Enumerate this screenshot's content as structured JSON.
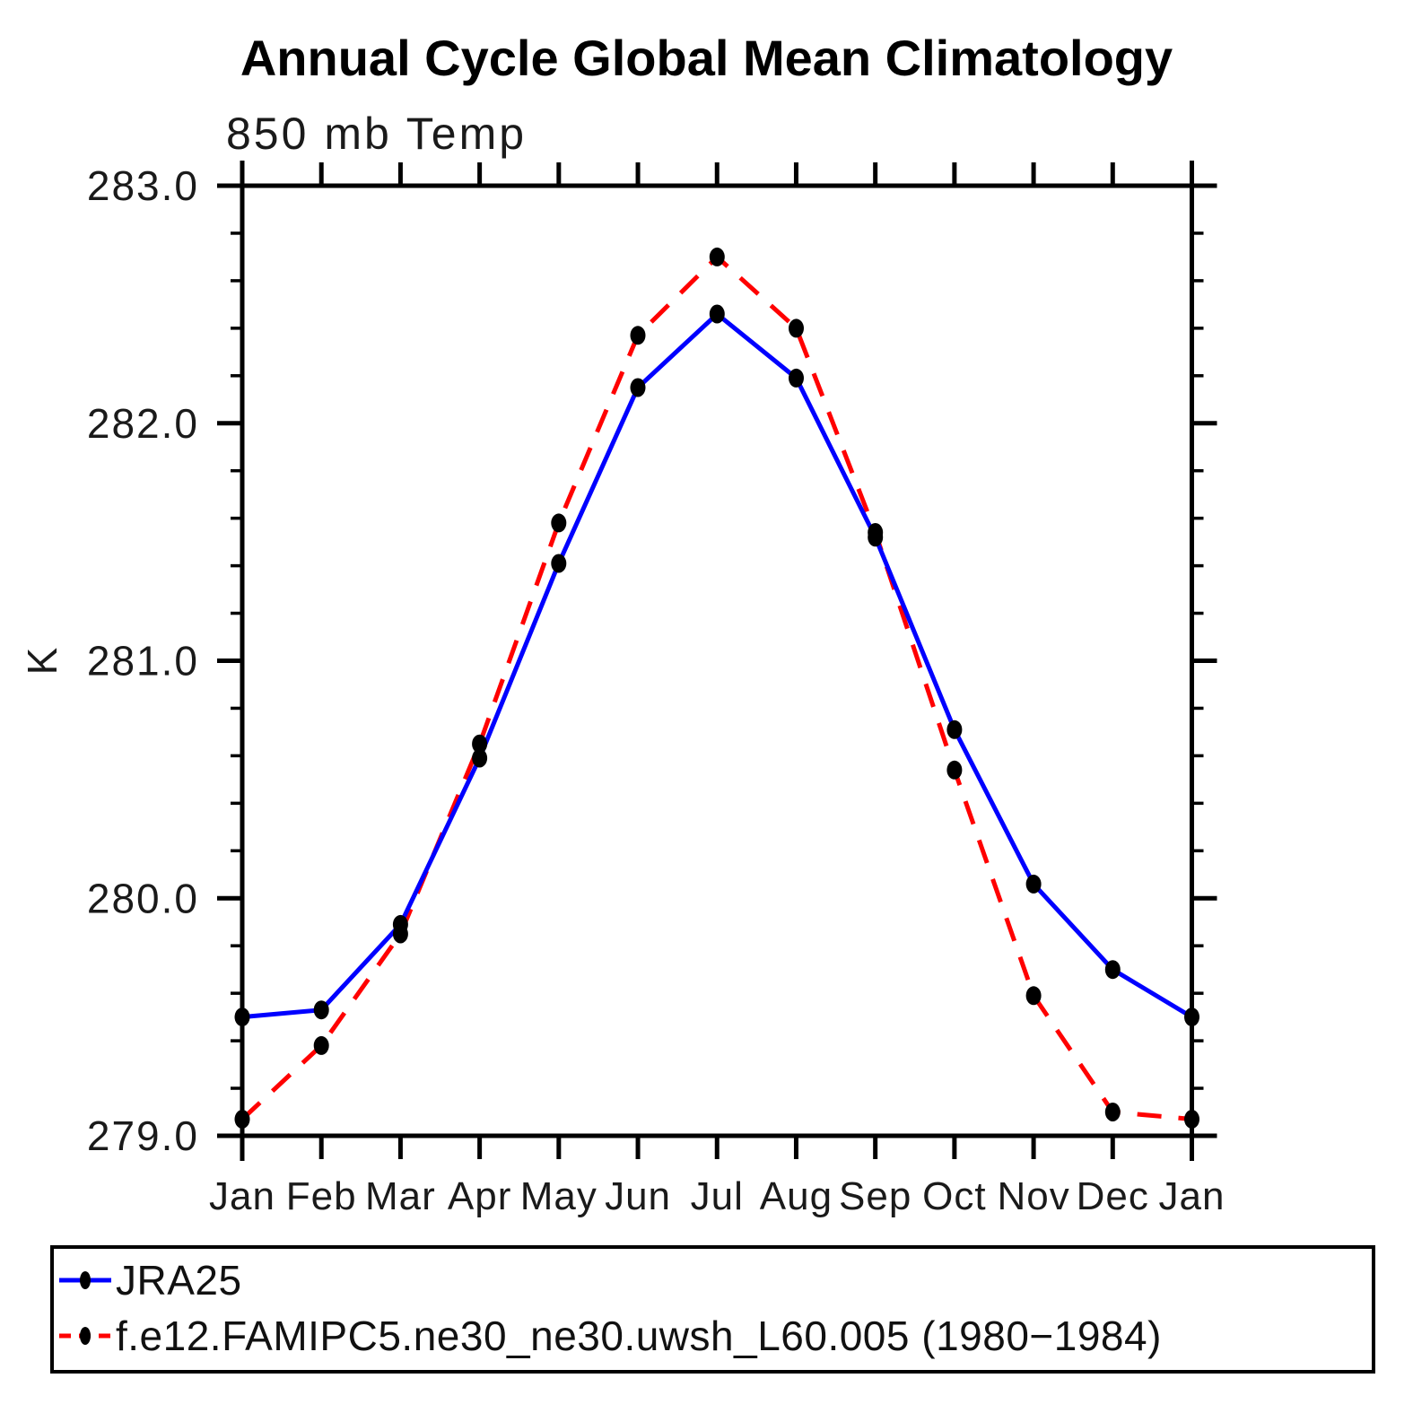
{
  "header": {
    "title": "Annual Cycle Global Mean Climatology"
  },
  "chart_data": {
    "type": "line",
    "title": "Annual Cycle Global Mean Climatology",
    "subtitle": "850 mb Temp",
    "ylabel": "K",
    "categories": [
      "Jan",
      "Feb",
      "Mar",
      "Apr",
      "May",
      "Jun",
      "Jul",
      "Aug",
      "Sep",
      "Oct",
      "Nov",
      "Dec",
      "Jan"
    ],
    "ylim": [
      279.0,
      283.0
    ],
    "ytick_labels": [
      "279.0",
      "280.0",
      "281.0",
      "282.0",
      "283.0"
    ],
    "ytick_major": [
      279.0,
      280.0,
      281.0,
      282.0,
      283.0
    ],
    "ytick_minor_step": 0.2,
    "grid": false,
    "legend_position": "bottom",
    "colors": {
      "axis": "#000000",
      "marker": "#000000",
      "jra25": "#0000ff",
      "model": "#ff0000"
    },
    "series": [
      {
        "name": "JRA25",
        "color": "#0000ff",
        "style": "solid",
        "marker": "black-dot",
        "values": [
          279.5,
          279.53,
          279.89,
          280.59,
          281.41,
          282.15,
          282.46,
          282.19,
          281.52,
          280.71,
          280.06,
          279.7,
          279.5
        ]
      },
      {
        "name": "f.e12.FAMIPC5.ne30_ne30.uwsh_L60.005 (1980−1984)",
        "color": "#ff0000",
        "style": "dashed",
        "marker": "black-dot",
        "values": [
          279.07,
          279.38,
          279.85,
          280.65,
          281.58,
          282.37,
          282.7,
          282.4,
          281.54,
          280.54,
          279.59,
          279.1,
          279.07
        ]
      }
    ]
  }
}
